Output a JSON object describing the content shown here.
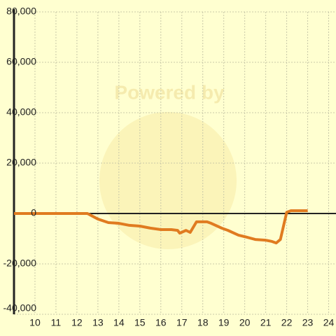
{
  "chart_data": {
    "type": "line",
    "watermark": "Powered by",
    "x": [
      9,
      12.5,
      13,
      13.5,
      14,
      14.5,
      15,
      15.5,
      16,
      16.5,
      16.8,
      16.9,
      17.2,
      17.4,
      17.7,
      18.2,
      18.4,
      18.9,
      19.2,
      19.7,
      20,
      20.5,
      21,
      21.3,
      21.5,
      21.7,
      22,
      22.2,
      23
    ],
    "series": [
      {
        "color": "#e07b20",
        "values": [
          0,
          0,
          -2200,
          -3600,
          -3900,
          -4700,
          -5000,
          -5800,
          -6400,
          -6400,
          -6700,
          -7800,
          -6700,
          -7500,
          -3300,
          -3300,
          -3900,
          -5800,
          -6700,
          -8600,
          -9200,
          -10300,
          -10600,
          -11100,
          -11700,
          -10300,
          500,
          1100,
          1100
        ]
      }
    ],
    "xlim": [
      9,
      24.35
    ],
    "xticks": [
      10,
      11,
      12,
      13,
      14,
      15,
      16,
      17,
      18,
      19,
      20,
      21,
      22,
      23,
      24
    ],
    "ylim": [
      -40000,
      80000
    ],
    "yticks": [
      {
        "value": -40000,
        "label": "-40,000"
      },
      {
        "value": -20000,
        "label": "-20,000"
      },
      0,
      {
        "value": 20000,
        "label": "20,000"
      },
      {
        "value": 40000,
        "label": "40,000"
      },
      {
        "value": 60000,
        "label": "60,000"
      },
      {
        "value": 80000,
        "label": "80,000"
      }
    ],
    "grid": true
  }
}
